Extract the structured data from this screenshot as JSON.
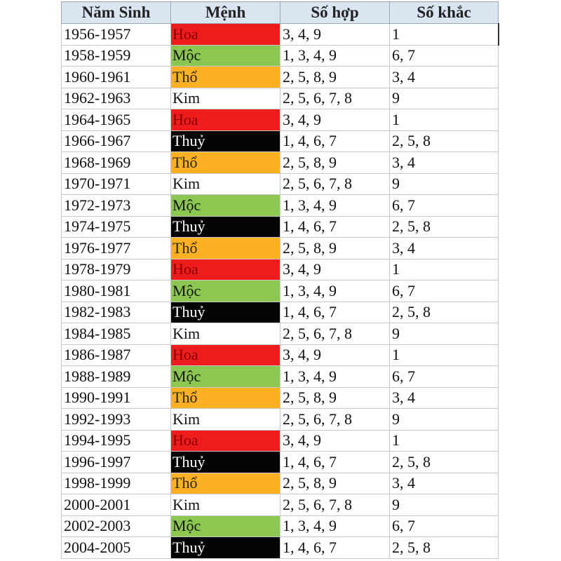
{
  "table": {
    "headers": {
      "year": "Năm Sinh",
      "menh": "Mệnh",
      "so_hop": "Số hợp",
      "so_khac": "Số khắc"
    },
    "element_colors": {
      "Hoa": "#ee1c1c",
      "Mộc": "#8cc751",
      "Thổ": "#fbb123",
      "Kim": "#ffffff",
      "Thuỷ": "#050505"
    },
    "rows": [
      {
        "year": "1956-1957",
        "menh": "Hoa",
        "so_hop": "3, 4, 9",
        "so_khac": "1"
      },
      {
        "year": "1958-1959",
        "menh": "Mộc",
        "so_hop": "1, 3, 4, 9",
        "so_khac": "6, 7"
      },
      {
        "year": "1960-1961",
        "menh": "Thổ",
        "so_hop": "2, 5, 8, 9",
        "so_khac": "3, 4"
      },
      {
        "year": "1962-1963",
        "menh": "Kim",
        "so_hop": "2, 5, 6, 7, 8",
        "so_khac": "9"
      },
      {
        "year": "1964-1965",
        "menh": "Hoa",
        "so_hop": "3, 4, 9",
        "so_khac": "1"
      },
      {
        "year": "1966-1967",
        "menh": "Thuỷ",
        "so_hop": "1, 4, 6, 7",
        "so_khac": "2, 5, 8"
      },
      {
        "year": "1968-1969",
        "menh": "Thổ",
        "so_hop": "2, 5, 8, 9",
        "so_khac": "3, 4"
      },
      {
        "year": "1970-1971",
        "menh": "Kim",
        "so_hop": "2, 5, 6, 7, 8",
        "so_khac": "9"
      },
      {
        "year": "1972-1973",
        "menh": "Mộc",
        "so_hop": "1, 3, 4, 9",
        "so_khac": "6, 7"
      },
      {
        "year": "1974-1975",
        "menh": "Thuỷ",
        "so_hop": "1, 4, 6, 7",
        "so_khac": "2, 5, 8"
      },
      {
        "year": "1976-1977",
        "menh": "Thổ",
        "so_hop": "2, 5, 8, 9",
        "so_khac": "3, 4"
      },
      {
        "year": "1978-1979",
        "menh": "Hoa",
        "so_hop": "3, 4, 9",
        "so_khac": "1"
      },
      {
        "year": "1980-1981",
        "menh": "Mộc",
        "so_hop": "1, 3, 4, 9",
        "so_khac": "6, 7"
      },
      {
        "year": "1982-1983",
        "menh": "Thuỷ",
        "so_hop": "1, 4, 6, 7",
        "so_khac": "2, 5, 8"
      },
      {
        "year": "1984-1985",
        "menh": "Kim",
        "so_hop": "2, 5, 6, 7, 8",
        "so_khac": "9"
      },
      {
        "year": "1986-1987",
        "menh": "Hoa",
        "so_hop": "3, 4, 9",
        "so_khac": "1"
      },
      {
        "year": "1988-1989",
        "menh": "Mộc",
        "so_hop": "1, 3, 4, 9",
        "so_khac": "6, 7"
      },
      {
        "year": "1990-1991",
        "menh": "Thổ",
        "so_hop": "2, 5, 8, 9",
        "so_khac": "3, 4"
      },
      {
        "year": "1992-1993",
        "menh": "Kim",
        "so_hop": "2, 5, 6, 7, 8",
        "so_khac": "9"
      },
      {
        "year": "1994-1995",
        "menh": "Hoa",
        "so_hop": "3, 4, 9",
        "so_khac": "1"
      },
      {
        "year": "1996-1997",
        "menh": "Thuỷ",
        "so_hop": "1, 4, 6, 7",
        "so_khac": "2, 5, 8"
      },
      {
        "year": "1998-1999",
        "menh": "Thổ",
        "so_hop": "2, 5, 8, 9",
        "so_khac": "3, 4"
      },
      {
        "year": "2000-2001",
        "menh": "Kim",
        "so_hop": "2, 5, 6, 7, 8",
        "so_khac": "9"
      },
      {
        "year": "2002-2003",
        "menh": "Mộc",
        "so_hop": "1, 3, 4, 9",
        "so_khac": "6, 7"
      },
      {
        "year": "2004-2005",
        "menh": "Thuỷ",
        "so_hop": "1, 4, 6, 7",
        "so_khac": "2, 5, 8"
      }
    ]
  }
}
